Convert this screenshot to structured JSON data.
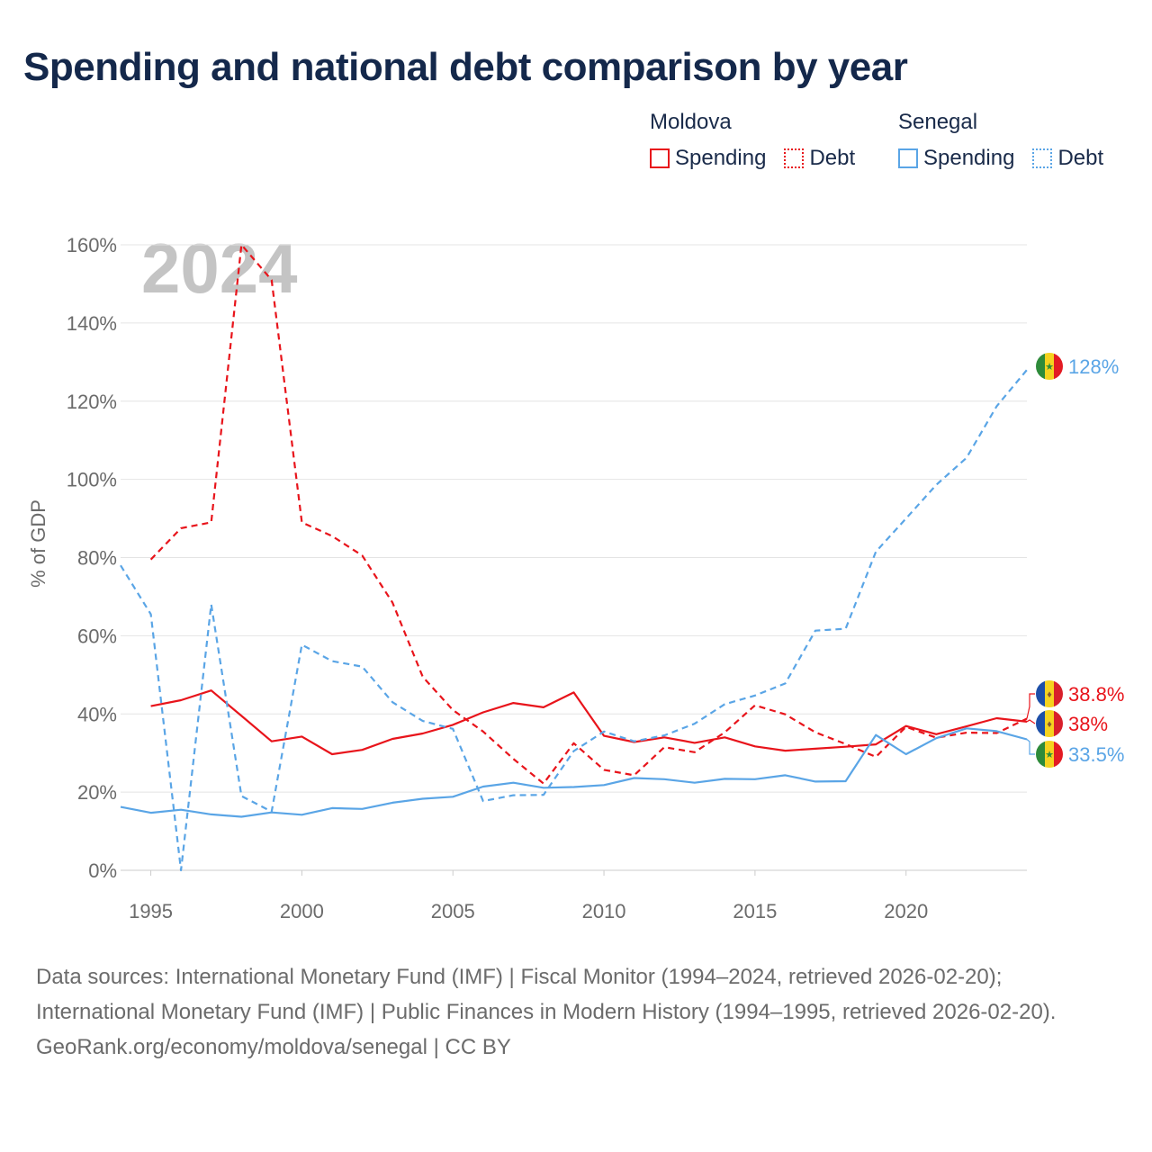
{
  "title": "Spending and national debt comparison by year",
  "legend": {
    "groups": [
      {
        "country": "Moldova",
        "spending_label": "Spending",
        "debt_label": "Debt"
      },
      {
        "country": "Senegal",
        "spending_label": "Spending",
        "debt_label": "Debt"
      }
    ]
  },
  "colors": {
    "moldova": "#e8141b",
    "senegal": "#5aa5e6",
    "year_watermark": "#c4c4c4"
  },
  "chart_data": {
    "type": "line",
    "year_label": "2024",
    "ylabel": "% of GDP",
    "xlabel": "",
    "xlim": [
      1994,
      2024
    ],
    "ylim": [
      0,
      160
    ],
    "xticks": [
      1995,
      2000,
      2005,
      2010,
      2015,
      2020
    ],
    "yticks": [
      0,
      20,
      40,
      60,
      80,
      100,
      120,
      140,
      160
    ],
    "ytick_suffix": "%",
    "grid": true,
    "series": [
      {
        "name": "Moldova Spending",
        "country": "Moldova",
        "measure": "Spending",
        "style": "solid",
        "color": "#e8141b",
        "x": [
          1995,
          1996,
          1997,
          1998,
          1999,
          2000,
          2001,
          2002,
          2003,
          2004,
          2005,
          2006,
          2007,
          2008,
          2009,
          2010,
          2011,
          2012,
          2013,
          2014,
          2015,
          2016,
          2017,
          2018,
          2019,
          2020,
          2021,
          2022,
          2023,
          2024
        ],
        "values": [
          42,
          43.5,
          46,
          39.5,
          33,
          34.2,
          29.7,
          30.8,
          33.6,
          35,
          37.2,
          40.4,
          42.8,
          41.7,
          45.5,
          34.4,
          32.8,
          34,
          32.6,
          34,
          31.7,
          30.6,
          31.1,
          31.6,
          32.2,
          36.9,
          34.8,
          36.8,
          38.9,
          38.0
        ]
      },
      {
        "name": "Moldova Debt",
        "country": "Moldova",
        "measure": "Debt",
        "style": "dashed",
        "color": "#e8141b",
        "x": [
          1995,
          1996,
          1997,
          1998,
          1999,
          2000,
          2001,
          2002,
          2003,
          2004,
          2005,
          2006,
          2007,
          2008,
          2009,
          2010,
          2011,
          2012,
          2013,
          2014,
          2015,
          2016,
          2017,
          2018,
          2019,
          2020,
          2021,
          2022,
          2023,
          2024
        ],
        "values": [
          79.5,
          87.5,
          89,
          160,
          151,
          89,
          85.5,
          80.5,
          68.5,
          49.5,
          41,
          35.5,
          28.5,
          22.2,
          32.5,
          25.7,
          24.3,
          31.5,
          30.2,
          35.3,
          42.2,
          39.9,
          35.3,
          32.3,
          29,
          36.7,
          33.9,
          35.2,
          35.1,
          38.8
        ]
      },
      {
        "name": "Senegal Spending",
        "country": "Senegal",
        "measure": "Spending",
        "style": "solid",
        "color": "#5aa5e6",
        "x": [
          1994,
          1995,
          1996,
          1997,
          1998,
          1999,
          2000,
          2001,
          2002,
          2003,
          2004,
          2005,
          2006,
          2007,
          2008,
          2009,
          2010,
          2011,
          2012,
          2013,
          2014,
          2015,
          2016,
          2017,
          2018,
          2019,
          2020,
          2021,
          2022,
          2023,
          2024
        ],
        "values": [
          16.2,
          14.7,
          15.5,
          14.3,
          13.7,
          14.8,
          14.2,
          15.9,
          15.7,
          17.3,
          18.3,
          18.8,
          21.4,
          22.4,
          21.1,
          21.3,
          21.8,
          23.6,
          23.3,
          22.4,
          23.4,
          23.3,
          24.3,
          22.7,
          22.8,
          34.6,
          29.7,
          33.8,
          36.3,
          35.6,
          33.5
        ]
      },
      {
        "name": "Senegal Debt",
        "country": "Senegal",
        "measure": "Debt",
        "style": "dashed",
        "color": "#5aa5e6",
        "x": [
          1994,
          1995,
          1996,
          1997,
          1998,
          1999,
          2000,
          2001,
          2002,
          2003,
          2004,
          2005,
          2006,
          2007,
          2008,
          2009,
          2010,
          2011,
          2012,
          2013,
          2014,
          2015,
          2016,
          2017,
          2018,
          2019,
          2020,
          2021,
          2022,
          2023,
          2024
        ],
        "values": [
          78,
          65.5,
          0,
          68,
          19,
          15,
          57.7,
          53.5,
          52.1,
          43,
          38.2,
          36.2,
          17.7,
          19.2,
          19.3,
          30.5,
          35.5,
          33,
          34.5,
          37.5,
          42.5,
          44.7,
          47.8,
          61.3,
          61.8,
          81.5,
          90,
          98.6,
          105.5,
          118.7,
          128
        ]
      }
    ],
    "end_labels": [
      {
        "country": "Senegal",
        "text": "128%",
        "value": 128,
        "color": "#5aa5e6"
      },
      {
        "country": "Moldova",
        "text": "38.8%",
        "value": 38.8,
        "color": "#e8141b"
      },
      {
        "country": "Moldova",
        "text": "38%",
        "value": 38.0,
        "color": "#e8141b"
      },
      {
        "country": "Senegal",
        "text": "33.5%",
        "value": 33.5,
        "color": "#5aa5e6"
      }
    ]
  },
  "footer": {
    "sources": "Data sources: International Monetary Fund (IMF) | Fiscal Monitor (1994–2024, retrieved 2026-02-20); International Monetary Fund (IMF) | Public Finances in Modern History (1994–1995, retrieved 2026-02-20).",
    "credit": "GeoRank.org/economy/moldova/senegal | CC BY"
  }
}
